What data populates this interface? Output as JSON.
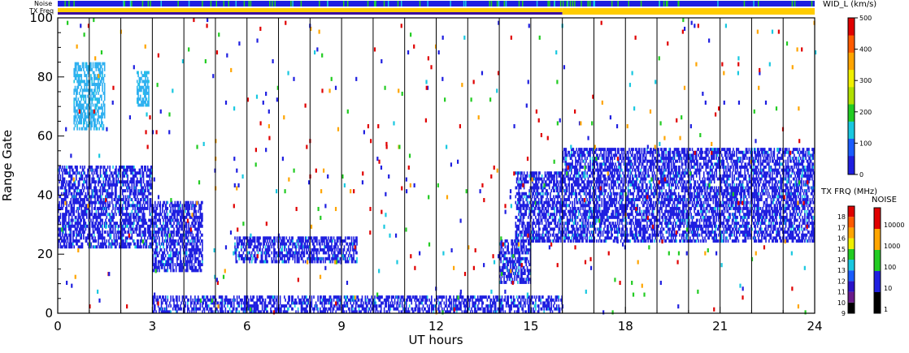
{
  "chart_data": {
    "type": "heatmap",
    "title": "",
    "xlabel": "UT hours",
    "ylabel": "Range Gate",
    "xlim": [
      0,
      24
    ],
    "ylim": [
      0,
      100
    ],
    "x_ticks": [
      "0",
      "3",
      "6",
      "9",
      "12",
      "15",
      "18",
      "21",
      "24"
    ],
    "y_ticks": [
      "0",
      "20",
      "40",
      "60",
      "80",
      "100"
    ],
    "scan_lines_hours": [
      1,
      2,
      3,
      4,
      5,
      6,
      7,
      8,
      9,
      10,
      11,
      12,
      13,
      14,
      15,
      16,
      17,
      18,
      19,
      20,
      21,
      22,
      23
    ],
    "top_strips": [
      {
        "label": "Noise",
        "dominant_color": "#1f1fe0"
      },
      {
        "label": "TX Freq",
        "segments": [
          {
            "from": 0,
            "to": 16,
            "color": "#ffcc00",
            "upper_color": "#3a0fa0"
          },
          {
            "from": 16,
            "to": 24,
            "color": "#ffcc00",
            "upper_color": "#ffcc00"
          }
        ]
      }
    ],
    "colorbars": {
      "width": {
        "title": "WID_L (km/s)",
        "ticks": [
          "0",
          "100",
          "200",
          "300",
          "400",
          "500"
        ],
        "range": [
          0,
          500
        ]
      },
      "txfreq": {
        "title": "TX FRQ (MHz)",
        "ticks": [
          "9",
          "10",
          "11",
          "12",
          "13",
          "14",
          "15",
          "16",
          "17",
          "18"
        ],
        "colors": [
          "#000000",
          "#6a1a8a",
          "#2a12c8",
          "#1a5cff",
          "#19c8e0",
          "#22cc22",
          "#f0f000",
          "#ffa500",
          "#ff5a00",
          "#e00000"
        ]
      },
      "noise": {
        "title": "NOISE",
        "ticks": [
          "1",
          "10",
          "100",
          "1000",
          "10000"
        ],
        "colors": [
          "#000000",
          "#2020e0",
          "#22cc22",
          "#ffa500",
          "#e00000"
        ]
      }
    },
    "regions": [
      {
        "name": "main-echo-early",
        "x_range": [
          0,
          3
        ],
        "gate_range": [
          22,
          50
        ],
        "color": "#1f1fe0"
      },
      {
        "name": "echo-early-high",
        "x_range": [
          0.5,
          1.5
        ],
        "gate_range": [
          62,
          85
        ],
        "color": "#2fb0f0"
      },
      {
        "name": "echo-near-3h",
        "x_range": [
          2.5,
          2.9
        ],
        "gate_range": [
          70,
          82
        ],
        "color": "#2fb0f0"
      },
      {
        "name": "echo-3-4h",
        "x_range": [
          3,
          4.6
        ],
        "gate_range": [
          14,
          38
        ],
        "color": "#1f1fe0"
      },
      {
        "name": "band-6-9h",
        "x_range": [
          5.6,
          9.5
        ],
        "gate_range": [
          17,
          26
        ],
        "color": "#1f1fe0"
      },
      {
        "name": "near-range-band",
        "x_range": [
          3,
          16
        ],
        "gate_range": [
          0,
          6
        ],
        "color": "#1f1fe0"
      },
      {
        "name": "echo-14-15h",
        "x_range": [
          14,
          15
        ],
        "gate_range": [
          10,
          25
        ],
        "color": "#1f1fe0"
      },
      {
        "name": "echo-15-16h",
        "x_range": [
          14.5,
          16
        ],
        "gate_range": [
          24,
          48
        ],
        "color": "#1f1fe0"
      },
      {
        "name": "main-echo-late",
        "x_range": [
          16,
          24
        ],
        "gate_range": [
          24,
          56
        ],
        "color": "#1f1fe0"
      }
    ]
  }
}
